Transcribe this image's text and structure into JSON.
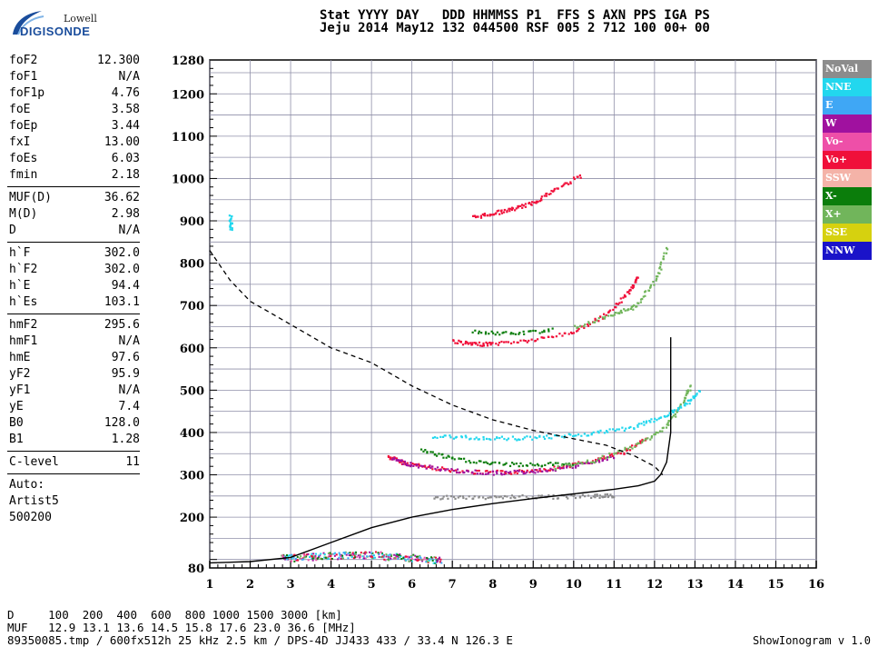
{
  "logo": {
    "line1": "Lowell",
    "line2": "DIGISONDE"
  },
  "header": {
    "row1": "Stat YYYY DAY   DDD HHMMSS P1  FFS S AXN PPS IGA PS",
    "row2": "Jeju 2014 May12 132 044500 RSF 005 2 712 100 00+ 00"
  },
  "params": {
    "group1": [
      {
        "label": "foF2",
        "value": "12.300"
      },
      {
        "label": "foF1",
        "value": "N/A"
      },
      {
        "label": "foF1p",
        "value": "4.76"
      },
      {
        "label": "foE",
        "value": "3.58"
      },
      {
        "label": "foEp",
        "value": "3.44"
      },
      {
        "label": "fxI",
        "value": "13.00"
      },
      {
        "label": "foEs",
        "value": "6.03"
      },
      {
        "label": "fmin",
        "value": "2.18"
      }
    ],
    "group2": [
      {
        "label": "MUF(D)",
        "value": "36.62"
      },
      {
        "label": "M(D)",
        "value": "2.98"
      },
      {
        "label": "D",
        "value": "N/A"
      }
    ],
    "group3": [
      {
        "label": "h`F",
        "value": "302.0"
      },
      {
        "label": "h`F2",
        "value": "302.0"
      },
      {
        "label": "h`E",
        "value": "94.4"
      },
      {
        "label": "h`Es",
        "value": "103.1"
      }
    ],
    "group4": [
      {
        "label": "hmF2",
        "value": "295.6"
      },
      {
        "label": "hmF1",
        "value": "N/A"
      },
      {
        "label": "hmE",
        "value": "97.6"
      },
      {
        "label": "yF2",
        "value": "95.9"
      },
      {
        "label": "yF1",
        "value": "N/A"
      },
      {
        "label": "yE",
        "value": "7.4"
      },
      {
        "label": "B0",
        "value": "128.0"
      },
      {
        "label": "B1",
        "value": "1.28"
      }
    ],
    "group5": [
      {
        "label": "C-level",
        "value": "11"
      }
    ],
    "auto": [
      "Auto:",
      "Artist5",
      "500200"
    ]
  },
  "legend": [
    {
      "label": "NoVal",
      "color": "#8c8c8c"
    },
    {
      "label": "NNE",
      "color": "#22d7ee"
    },
    {
      "label": "E",
      "color": "#3fa7f5"
    },
    {
      "label": "W",
      "color": "#a0119f"
    },
    {
      "label": "Vo-",
      "color": "#ee4fa8"
    },
    {
      "label": "Vo+",
      "color": "#f0103a"
    },
    {
      "label": "SSW",
      "color": "#f4b3a8"
    },
    {
      "label": "X-",
      "color": "#0b7d0b"
    },
    {
      "label": "X+",
      "color": "#71b55b"
    },
    {
      "label": "SSE",
      "color": "#d6d10f"
    },
    {
      "label": "NNW",
      "color": "#1a13c9"
    }
  ],
  "chart_data": {
    "type": "scatter",
    "xlim": [
      1,
      16
    ],
    "ylim": [
      80,
      1280
    ],
    "xticks": [
      "1",
      "2",
      "3",
      "4",
      "5",
      "6",
      "7",
      "8",
      "9",
      "10",
      "11",
      "12",
      "13",
      "14",
      "15",
      "16"
    ],
    "yticks": [
      "80",
      "200",
      "300",
      "400",
      "500",
      "600",
      "700",
      "800",
      "900",
      "1000",
      "1100",
      "1200",
      "1280"
    ],
    "grid": true,
    "series": [
      {
        "name": "Vo+",
        "color": "#f0103a",
        "traces": [
          [
            [
              5.4,
              345
            ],
            [
              5.8,
              330
            ],
            [
              6.5,
              318
            ],
            [
              7.5,
              308
            ],
            [
              8.5,
              308
            ],
            [
              9.5,
              318
            ],
            [
              10.5,
              335
            ],
            [
              11.2,
              355
            ],
            [
              11.8,
              390
            ]
          ],
          [
            [
              7.0,
              618
            ],
            [
              7.5,
              610
            ],
            [
              8.0,
              612
            ],
            [
              9.0,
              620
            ],
            [
              10.0,
              640
            ],
            [
              10.8,
              680
            ],
            [
              11.3,
              730
            ],
            [
              11.6,
              770
            ]
          ],
          [
            [
              7.5,
              910
            ],
            [
              8.0,
              920
            ],
            [
              8.5,
              930
            ],
            [
              9.0,
              945
            ],
            [
              9.5,
              975
            ],
            [
              10.2,
              1010
            ]
          ]
        ]
      },
      {
        "name": "W",
        "color": "#a0119f",
        "traces": [
          [
            [
              5.5,
              340
            ],
            [
              6.0,
              325
            ],
            [
              7.0,
              312
            ],
            [
              8.0,
              306
            ],
            [
              9.0,
              310
            ],
            [
              10.0,
              322
            ],
            [
              11.0,
              345
            ]
          ]
        ]
      },
      {
        "name": "X-",
        "color": "#0b7d0b",
        "traces": [
          [
            [
              6.2,
              360
            ],
            [
              7.0,
              340
            ],
            [
              8.0,
              328
            ],
            [
              9.0,
              325
            ],
            [
              10.0,
              330
            ]
          ],
          [
            [
              7.5,
              640
            ],
            [
              8.5,
              635
            ],
            [
              9.5,
              645
            ]
          ]
        ]
      },
      {
        "name": "X+",
        "color": "#71b55b",
        "traces": [
          [
            [
              9.5,
              318
            ],
            [
              10.5,
              335
            ],
            [
              11.5,
              370
            ],
            [
              12.2,
              410
            ],
            [
              12.6,
              460
            ],
            [
              12.9,
              515
            ]
          ],
          [
            [
              10.0,
              650
            ],
            [
              11.0,
              680
            ],
            [
              11.5,
              700
            ],
            [
              12.0,
              760
            ],
            [
              12.3,
              840
            ]
          ]
        ]
      },
      {
        "name": "NNE",
        "color": "#22d7ee",
        "traces": [
          [
            [
              6.5,
              392
            ],
            [
              7.5,
              390
            ],
            [
              8.5,
              388
            ],
            [
              9.5,
              392
            ],
            [
              10.5,
              400
            ],
            [
              11.5,
              415
            ],
            [
              12.2,
              440
            ],
            [
              12.8,
              470
            ],
            [
              13.1,
              500
            ]
          ],
          [
            [
              1.5,
              880
            ],
            [
              1.5,
              915
            ]
          ]
        ]
      },
      {
        "name": "NoVal",
        "color": "#8c8c8c",
        "traces": [
          [
            [
              6.5,
              248
            ],
            [
              7.5,
              249
            ],
            [
              8.5,
              250
            ],
            [
              9.5,
              250
            ],
            [
              10.5,
              252
            ],
            [
              11.0,
              252
            ]
          ]
        ]
      }
    ],
    "es_cluster": [
      [
        3,
        105
      ],
      [
        3.5,
        108
      ],
      [
        4,
        110
      ],
      [
        4.5,
        112
      ],
      [
        5,
        112
      ],
      [
        5.5,
        108
      ],
      [
        6,
        105
      ],
      [
        6.5,
        100
      ]
    ],
    "profile_solid": [
      [
        1,
        92
      ],
      [
        2,
        95
      ],
      [
        3,
        105
      ],
      [
        4,
        140
      ],
      [
        5,
        175
      ],
      [
        6,
        200
      ],
      [
        7,
        218
      ],
      [
        8,
        232
      ],
      [
        9,
        244
      ],
      [
        10,
        255
      ],
      [
        11,
        266
      ],
      [
        11.6,
        274
      ],
      [
        12.0,
        285
      ],
      [
        12.15,
        300
      ],
      [
        12.3,
        330
      ],
      [
        12.4,
        400
      ],
      [
        12.4,
        500
      ],
      [
        12.4,
        625
      ]
    ],
    "profile_dashed": [
      [
        1,
        830
      ],
      [
        1.5,
        760
      ],
      [
        2,
        710
      ],
      [
        3,
        655
      ],
      [
        4,
        600
      ],
      [
        5,
        565
      ],
      [
        6,
        510
      ],
      [
        7,
        465
      ],
      [
        8,
        430
      ],
      [
        9,
        405
      ],
      [
        10,
        385
      ],
      [
        10.8,
        370
      ],
      [
        11.5,
        345
      ],
      [
        12.0,
        320
      ],
      [
        12.2,
        300
      ]
    ]
  },
  "footer": {
    "line1": "D     100  200  400  600  800 1000 1500 3000 [km]",
    "line2": "MUF   12.9 13.1 13.6 14.5 15.8 17.6 23.0 36.6 [MHz]",
    "line3": "89350085.tmp / 600fx512h 25 kHz 2.5 km / DPS-4D JJ433 433 / 33.4 N 126.3 E",
    "version": "ShowIonogram v 1.0"
  }
}
